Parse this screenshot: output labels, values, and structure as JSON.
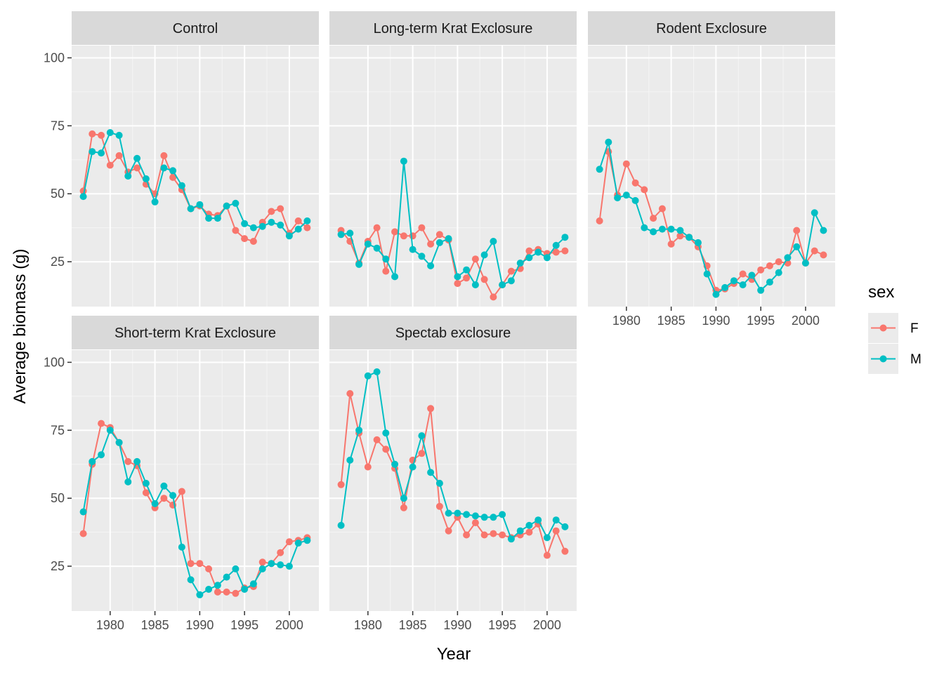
{
  "chart_data": {
    "type": "line",
    "facet_layout": "3 columns x 2 rows",
    "xlabel": "Year",
    "ylabel": "Average biomass (g)",
    "x_ticks": [
      1980,
      1985,
      1990,
      1995,
      2000
    ],
    "y_ticks": [
      25,
      50,
      75,
      100
    ],
    "xlim": [
      1975.7,
      2003.3
    ],
    "ylim": [
      8.5,
      104.5
    ],
    "grid": true,
    "legend": {
      "title": "sex",
      "placement": "right",
      "entries": [
        {
          "label": "F",
          "color": "#F8766D"
        },
        {
          "label": "M",
          "color": "#00BFC4"
        }
      ]
    },
    "facets": [
      {
        "title": "Control",
        "years": [
          1977,
          1978,
          1979,
          1980,
          1981,
          1982,
          1983,
          1984,
          1985,
          1986,
          1987,
          1988,
          1989,
          1990,
          1991,
          1992,
          1993,
          1994,
          1995,
          1996,
          1997,
          1998,
          1999,
          2000,
          2001,
          2002
        ],
        "series": [
          {
            "name": "F",
            "values": [
              51,
              72,
              71.5,
              60.5,
              64,
              58,
              59.5,
              53.5,
              50,
              64,
              56,
              51.5,
              44.5,
              45.5,
              42.5,
              42,
              45.5,
              36.5,
              33.5,
              32.5,
              39.5,
              43.5,
              44.5,
              35.5,
              40,
              37.5
            ]
          },
          {
            "name": "M",
            "values": [
              49,
              65.5,
              65,
              72.5,
              71.5,
              56.5,
              63,
              55.5,
              47,
              59.5,
              58.5,
              53,
              44.5,
              46,
              41,
              41,
              45.5,
              46.5,
              39,
              37.5,
              38,
              39.5,
              38.5,
              34.5,
              37,
              40
            ]
          }
        ]
      },
      {
        "title": "Long-term Krat Exclosure",
        "years": [
          1977,
          1978,
          1979,
          1980,
          1981,
          1982,
          1983,
          1984,
          1985,
          1986,
          1987,
          1988,
          1989,
          1990,
          1991,
          1992,
          1993,
          1994,
          1995,
          1996,
          1997,
          1998,
          1999,
          2000,
          2001,
          2002
        ],
        "series": [
          {
            "name": "F",
            "values": [
              36.5,
              32.5,
              24.5,
              32.5,
              37.5,
              21.5,
              36,
              34.5,
              34.5,
              37.5,
              31.5,
              35,
              33,
              17,
              19,
              26,
              18.5,
              12,
              16.5,
              21.5,
              22.5,
              29,
              29.5,
              28,
              28.5,
              29
            ]
          },
          {
            "name": "M",
            "values": [
              35,
              35.5,
              24,
              31.5,
              30,
              26,
              19.5,
              62,
              29.5,
              27,
              23.5,
              32,
              33.5,
              19.5,
              22,
              16.5,
              27.5,
              32.5,
              16.5,
              18,
              24.5,
              26.5,
              28.5,
              26.5,
              31,
              34
            ]
          }
        ]
      },
      {
        "title": "Rodent Exclosure",
        "years": [
          1977,
          1978,
          1979,
          1980,
          1981,
          1982,
          1983,
          1984,
          1985,
          1986,
          1987,
          1988,
          1989,
          1990,
          1991,
          1992,
          1993,
          1994,
          1995,
          1996,
          1997,
          1998,
          1999,
          2000,
          2001,
          2002
        ],
        "series": [
          {
            "name": "F",
            "values": [
              40,
              65.5,
              49.5,
              61,
              54,
              51.5,
              41,
              44.5,
              31.5,
              34.5,
              34,
              30.5,
              23.5,
              14.5,
              15,
              17,
              20.5,
              18.5,
              22,
              23.5,
              25,
              24.5,
              36.5,
              24.5,
              29,
              27.5
            ]
          },
          {
            "name": "M",
            "values": [
              59,
              69,
              48.5,
              49.5,
              47.5,
              37.5,
              36,
              37,
              37,
              36.5,
              34,
              32,
              20.5,
              13,
              15.5,
              18,
              16.5,
              20,
              14.5,
              17.5,
              21,
              26.5,
              30.5,
              24.5,
              43,
              36.5
            ]
          }
        ]
      },
      {
        "title": "Short-term Krat Exclosure",
        "years": [
          1977,
          1978,
          1979,
          1980,
          1981,
          1982,
          1983,
          1984,
          1985,
          1986,
          1987,
          1988,
          1989,
          1990,
          1991,
          1992,
          1993,
          1994,
          1995,
          1996,
          1997,
          1998,
          1999,
          2000,
          2001,
          2002
        ],
        "series": [
          {
            "name": "F",
            "values": [
              37,
              62.5,
              77.5,
              76,
              70.5,
              63.5,
              62,
              52,
              46.5,
              50,
              47.5,
              52.5,
              26,
              26,
              24,
              15.5,
              15.5,
              15,
              17,
              17.5,
              26.5,
              26,
              30,
              34,
              34.5,
              35.5
            ]
          },
          {
            "name": "M",
            "values": [
              45,
              63.5,
              66,
              75,
              70.5,
              56,
              63.5,
              55.5,
              48,
              54.5,
              51,
              32,
              20,
              14.5,
              16.5,
              18,
              21,
              24,
              16.5,
              18.5,
              24,
              26,
              25.5,
              25,
              33.5,
              34.5
            ]
          }
        ]
      },
      {
        "title": "Spectab exclosure",
        "years": [
          1977,
          1978,
          1979,
          1980,
          1981,
          1982,
          1983,
          1984,
          1985,
          1986,
          1987,
          1988,
          1989,
          1990,
          1991,
          1992,
          1993,
          1994,
          1995,
          1996,
          1997,
          1998,
          1999,
          2000,
          2001,
          2002
        ],
        "series": [
          {
            "name": "F",
            "values": [
              55,
              88.5,
              74,
              61.5,
              71.5,
              68,
              61,
              46.5,
              64,
              66.5,
              83,
              47,
              38,
              43,
              36.5,
              41,
              36.5,
              37,
              36.5,
              35.5,
              36.5,
              37.5,
              40.5,
              29,
              38,
              30.5
            ]
          },
          {
            "name": "M",
            "values": [
              40,
              64,
              75,
              95,
              96.5,
              74,
              62.5,
              50,
              61.5,
              73,
              59.5,
              55.5,
              44.5,
              44.5,
              44,
              43.5,
              43,
              43,
              44,
              35,
              38,
              40,
              42,
              35.5,
              42,
              39.5
            ]
          }
        ]
      }
    ]
  }
}
